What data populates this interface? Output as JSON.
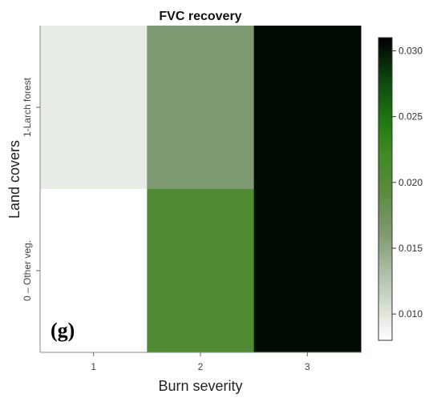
{
  "chart_data": {
    "type": "heatmap",
    "title": "FVC recovery",
    "xlabel": "Burn severity",
    "ylabel": "Land covers",
    "x_categories": [
      "1",
      "2",
      "3"
    ],
    "y_categories": [
      "0 – Other veg.",
      "1-Larch forest"
    ],
    "values": [
      {
        "x": "1",
        "y": "1-Larch forest",
        "value": 0.0095
      },
      {
        "x": "2",
        "y": "1-Larch forest",
        "value": 0.0162
      },
      {
        "x": "3",
        "y": "1-Larch forest",
        "value": 0.0305
      },
      {
        "x": "1",
        "y": "0 – Other veg.",
        "value": 0.008
      },
      {
        "x": "2",
        "y": "0 – Other veg.",
        "value": 0.0205
      },
      {
        "x": "3",
        "y": "0 – Other veg.",
        "value": 0.0305
      }
    ],
    "colorbar": {
      "ticks": [
        "0.030",
        "0.025",
        "0.020",
        "0.015",
        "0.010"
      ],
      "range": [
        0.008,
        0.031
      ]
    },
    "panel_label": "(g)"
  }
}
